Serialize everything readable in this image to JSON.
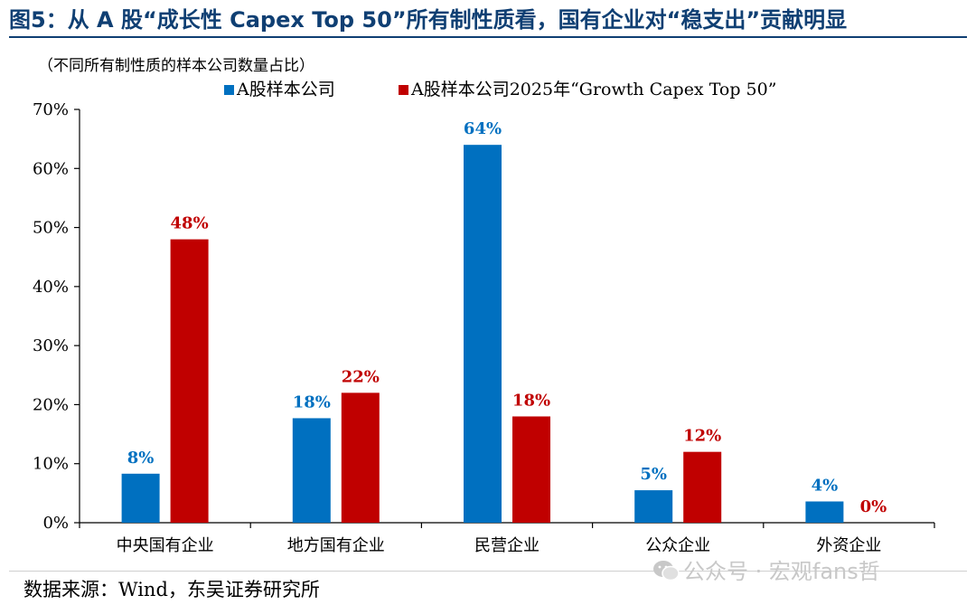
{
  "figure": {
    "title": "图5：从 A 股“成长性 Capex Top 50”所有制性质看，国有企业对“稳支出”贡献明显",
    "subtitle": "（不同所有制性质的样本公司数量占比）",
    "source": "数据来源：Wind，东吴证券研究所",
    "watermark": "公众号 · 宏观fans哲"
  },
  "colors": {
    "title": "#0f3f73",
    "series_blue": "#0070c0",
    "series_red": "#c00000"
  },
  "chart_data": {
    "type": "bar",
    "title": "",
    "xlabel": "",
    "ylabel": "",
    "ylim": [
      0,
      70
    ],
    "ytick_values": [
      0,
      10,
      20,
      30,
      40,
      50,
      60,
      70
    ],
    "ytick_labels": [
      "0%",
      "10%",
      "20%",
      "30%",
      "40%",
      "50%",
      "60%",
      "70%"
    ],
    "categories": [
      "中央国有企业",
      "地方国有企业",
      "民营企业",
      "公众企业",
      "外资企业"
    ],
    "series": [
      {
        "name": "A股样本公司",
        "values": [
          8.3,
          17.7,
          64,
          5.5,
          3.6
        ],
        "labels": [
          "8%",
          "18%",
          "64%",
          "5%",
          "4%"
        ],
        "color": "#0070c0"
      },
      {
        "name": "A股样本公司2025年“Growth Capex Top 50”",
        "values": [
          48,
          22,
          18,
          12,
          0
        ],
        "labels": [
          "48%",
          "22%",
          "18%",
          "12%",
          "0%"
        ],
        "color": "#c00000"
      }
    ],
    "grid": false,
    "legend_position": "top"
  }
}
